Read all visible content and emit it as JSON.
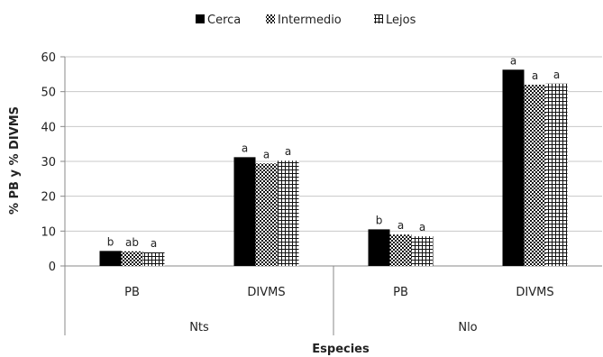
{
  "chart_data": {
    "type": "bar",
    "xlabel": "Especies",
    "ylabel": "% PB y % DIVMS",
    "ylim": [
      0,
      60
    ],
    "yticks": [
      0,
      10,
      20,
      30,
      40,
      50,
      60
    ],
    "legend_position": "top",
    "groups": [
      {
        "name": "Nts",
        "categories": [
          "PB",
          "DIVMS"
        ]
      },
      {
        "name": "Nlo",
        "categories": [
          "PB",
          "DIVMS"
        ]
      }
    ],
    "categories": [
      "PB",
      "DIVMS",
      "PB",
      "DIVMS"
    ],
    "series": [
      {
        "name": "Cerca",
        "pattern": "solid",
        "values": [
          4.3,
          31.2,
          10.5,
          56.3
        ],
        "labels": [
          "b",
          "a",
          "b",
          "a"
        ]
      },
      {
        "name": "Intermedio",
        "pattern": "checker",
        "values": [
          4.2,
          29.4,
          9.0,
          52.0
        ],
        "labels": [
          "ab",
          "a",
          "a",
          "a"
        ]
      },
      {
        "name": "Lejos",
        "pattern": "grid",
        "values": [
          3.9,
          30.2,
          8.5,
          52.3
        ],
        "labels": [
          "a",
          "a",
          "a",
          "a"
        ]
      }
    ]
  }
}
